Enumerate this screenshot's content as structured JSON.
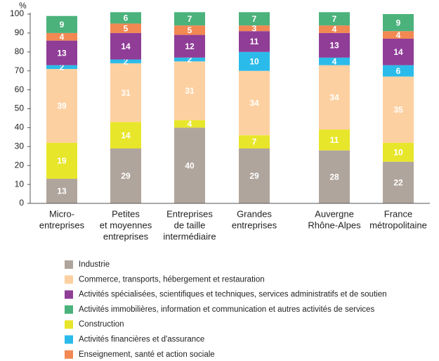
{
  "chart_data": {
    "type": "stacked_bar",
    "y_label": "%",
    "categories": [
      [
        "Micro-",
        "entreprises"
      ],
      [
        "Petites",
        "et moyennes",
        "entreprises"
      ],
      [
        "Entreprises",
        "de taille",
        "intermédiaire"
      ],
      [
        "Grandes",
        "entreprises"
      ],
      [
        "Auvergne",
        "Rhône-Alpes"
      ],
      [
        "France",
        "métropolitaine"
      ]
    ],
    "series": [
      {
        "name": "Industrie",
        "color": "#b0a59c",
        "values": [
          13,
          29,
          40,
          29,
          28,
          22
        ]
      },
      {
        "name": "Commerce, transports, hébergement et restauration",
        "color": "#fdd0a1",
        "values": [
          39,
          31,
          31,
          34,
          34,
          35
        ]
      },
      {
        "name": "Activités spécialisées, scientifiques et techniques, services administratifs et de soutien",
        "color": "#8f3d97",
        "values": [
          13,
          14,
          12,
          11,
          13,
          14
        ]
      },
      {
        "name": "Activités immobilières, information et communication et autres activités de services",
        "color": "#4bb27c",
        "values": [
          9,
          6,
          7,
          7,
          7,
          9
        ]
      },
      {
        "name": "Construction",
        "color": "#e8e62b",
        "values": [
          19,
          14,
          4,
          7,
          11,
          10
        ]
      },
      {
        "name": "Activités financières et d'assurance",
        "color": "#2bbbea",
        "values": [
          2,
          2,
          2,
          10,
          4,
          6
        ]
      },
      {
        "name": "Enseignement, santé et action sociale",
        "color": "#f28852",
        "values": [
          4,
          5,
          5,
          3,
          4,
          4
        ]
      }
    ],
    "stack_order": [
      0,
      4,
      1,
      5,
      2,
      6,
      3
    ],
    "ylim": [
      0,
      100
    ],
    "yticks": [
      0,
      10,
      20,
      30,
      40,
      50,
      60,
      70,
      80,
      90,
      100
    ],
    "grid": false
  }
}
